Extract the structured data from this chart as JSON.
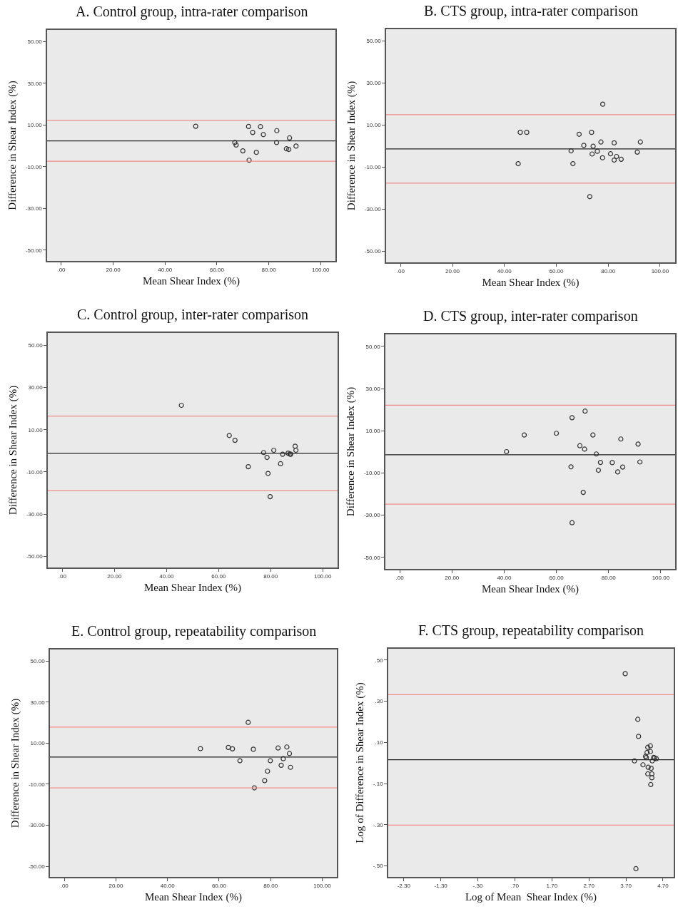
{
  "chart_data": [
    {
      "type": "scatter",
      "title": "A. Control group, intra-rater comparison",
      "xlabel": "Mean Shear Index (%)",
      "ylabel": "Difference in Shear Index (%)",
      "marker": "circle",
      "grid": false,
      "xlim": [
        -5.5,
        105.7
      ],
      "ylim": [
        -55.2,
        55.6
      ],
      "xticks": [
        {
          "value": 0,
          "label": ".00"
        },
        {
          "value": 20,
          "label": "20.00"
        },
        {
          "value": 40,
          "label": "40.00"
        },
        {
          "value": 60,
          "label": "60.00"
        },
        {
          "value": 80,
          "label": "80.00"
        },
        {
          "value": 100,
          "label": "100.00"
        }
      ],
      "yticks": [
        {
          "value": -50,
          "label": "-50.00"
        },
        {
          "value": -30,
          "label": "-30.00"
        },
        {
          "value": -10,
          "label": "-10.00"
        },
        {
          "value": 10,
          "label": "10.00"
        },
        {
          "value": 30,
          "label": "30.00"
        },
        {
          "value": 50,
          "label": "50.00"
        }
      ],
      "ref_lines": [
        {
          "axis": "y",
          "value": 12.3,
          "color": "#f08c8c"
        },
        {
          "axis": "y",
          "value": 2.4,
          "color": "#222222"
        },
        {
          "axis": "y",
          "value": -7.4,
          "color": "#f08c8c"
        }
      ],
      "series": [
        {
          "color": "#333333",
          "x": [
            51.8,
            66.9,
            67.4,
            70.0,
            72.2,
            72.4,
            73.8,
            75.2,
            76.8,
            77.9,
            83.0,
            83.1,
            86.8,
            87.7,
            88.0,
            90.5
          ],
          "values": [
            9.4,
            1.6,
            0.4,
            -2.4,
            9.3,
            -6.9,
            6.4,
            -3.1,
            9.2,
            5.4,
            1.6,
            7.3,
            -1.4,
            -1.7,
            3.8,
            -0.1
          ]
        }
      ]
    },
    {
      "type": "scatter",
      "title": "B. CTS group, intra-rater comparison",
      "xlabel": "Mean Shear Index (%)",
      "ylabel": "Difference in Shear Index (%)",
      "marker": "circle",
      "grid": false,
      "xlim": [
        -5.6,
        105.8
      ],
      "ylim": [
        -55.4,
        55.6
      ],
      "xticks": [
        {
          "value": 0,
          "label": ".00"
        },
        {
          "value": 20,
          "label": "20.00"
        },
        {
          "value": 40,
          "label": "40.00"
        },
        {
          "value": 60,
          "label": "60.00"
        },
        {
          "value": 80,
          "label": "80.00"
        },
        {
          "value": 100,
          "label": "100.00"
        }
      ],
      "yticks": [
        {
          "value": -50,
          "label": "-50.00"
        },
        {
          "value": -30,
          "label": "-30.00"
        },
        {
          "value": -10,
          "label": "-10.00"
        },
        {
          "value": 10,
          "label": "10.00"
        },
        {
          "value": 30,
          "label": "30.00"
        },
        {
          "value": 50,
          "label": "50.00"
        }
      ],
      "ref_lines": [
        {
          "axis": "y",
          "value": 14.9,
          "color": "#f08c8c"
        },
        {
          "axis": "y",
          "value": -1.4,
          "color": "#222222"
        },
        {
          "axis": "y",
          "value": -17.7,
          "color": "#f08c8c"
        }
      ],
      "series": [
        {
          "color": "#333333",
          "x": [
            45.3,
            46.1,
            48.6,
            65.7,
            66.4,
            68.8,
            70.6,
            72.9,
            73.6,
            73.8,
            74.2,
            75.8,
            77.2,
            77.8,
            77.9,
            80.9,
            82.3,
            82.3,
            83.2,
            85.0,
            91.2,
            92.4
          ],
          "values": [
            -8.4,
            6.5,
            6.5,
            -2.3,
            -8.4,
            5.6,
            0.3,
            -24.1,
            6.5,
            -3.8,
            -0.1,
            -2.5,
            1.9,
            -5.6,
            19.9,
            -3.7,
            1.5,
            -6.7,
            -5.0,
            -6.3,
            -2.9,
            1.9
          ]
        }
      ]
    },
    {
      "type": "scatter",
      "title": "C. Control group, inter-rater comparison",
      "xlabel": "Mean Shear Index (%)",
      "ylabel": "Difference in Shear Index (%)",
      "marker": "circle",
      "grid": false,
      "xlim": [
        -5.6,
        105.7
      ],
      "ylim": [
        -55.3,
        55.9
      ],
      "xticks": [
        {
          "value": 0,
          "label": ".00"
        },
        {
          "value": 20,
          "label": "20.00"
        },
        {
          "value": 40,
          "label": "40.00"
        },
        {
          "value": 60,
          "label": "60.00"
        },
        {
          "value": 80,
          "label": "80.00"
        },
        {
          "value": 100,
          "label": "100.00"
        }
      ],
      "yticks": [
        {
          "value": -50,
          "label": "-50.00"
        },
        {
          "value": -30,
          "label": "-30.00"
        },
        {
          "value": -10,
          "label": "-10.00"
        },
        {
          "value": 10,
          "label": "10.00"
        },
        {
          "value": 30,
          "label": "30.00"
        },
        {
          "value": 50,
          "label": "50.00"
        }
      ],
      "ref_lines": [
        {
          "axis": "y",
          "value": 16.5,
          "color": "#f08c8c"
        },
        {
          "axis": "y",
          "value": -1.2,
          "color": "#222222"
        },
        {
          "axis": "y",
          "value": -18.9,
          "color": "#f08c8c"
        }
      ],
      "series": [
        {
          "color": "#333333",
          "x": [
            45.7,
            64.1,
            66.3,
            71.4,
            77.3,
            78.6,
            79.0,
            79.8,
            81.2,
            83.8,
            84.6,
            86.7,
            87.4,
            87.7,
            89.4,
            89.7
          ],
          "values": [
            21.6,
            7.3,
            5.0,
            -7.5,
            -0.8,
            -3.1,
            -10.7,
            -21.7,
            0.3,
            -6.1,
            -1.6,
            -1.1,
            -1.5,
            -1.6,
            2.2,
            0.3
          ]
        }
      ]
    },
    {
      "type": "scatter",
      "title": "D. CTS group, inter-rater comparison",
      "xlabel": "Mean Shear Index (%)",
      "ylabel": "Difference in Shear Index (%)",
      "marker": "circle",
      "grid": false,
      "xlim": [
        -5.5,
        105.5
      ],
      "ylim": [
        -55.5,
        55.7
      ],
      "xticks": [
        {
          "value": 0,
          "label": ".00"
        },
        {
          "value": 20,
          "label": "20.00"
        },
        {
          "value": 40,
          "label": "40.00"
        },
        {
          "value": 60,
          "label": "60.00"
        },
        {
          "value": 80,
          "label": "80.00"
        },
        {
          "value": 100,
          "label": "100.00"
        }
      ],
      "yticks": [
        {
          "value": -50,
          "label": "-50.00"
        },
        {
          "value": -30,
          "label": "-30.00"
        },
        {
          "value": -10,
          "label": "-10.00"
        },
        {
          "value": 10,
          "label": "10.00"
        },
        {
          "value": 30,
          "label": "30.00"
        },
        {
          "value": 50,
          "label": "50.00"
        }
      ],
      "ref_lines": [
        {
          "axis": "y",
          "value": 22.1,
          "color": "#f08c8c"
        },
        {
          "axis": "y",
          "value": -1.4,
          "color": "#222222"
        },
        {
          "axis": "y",
          "value": -24.8,
          "color": "#f08c8c"
        }
      ],
      "series": [
        {
          "color": "#333333",
          "x": [
            40.9,
            47.7,
            60.0,
            65.6,
            66.0,
            66.0,
            69.0,
            70.3,
            70.8,
            71.0,
            74.0,
            75.3,
            76.1,
            76.9,
            81.4,
            83.5,
            84.7,
            85.4,
            91.3,
            92.0
          ],
          "values": [
            0.1,
            8.0,
            8.8,
            -7.1,
            16.2,
            -33.6,
            2.9,
            -19.2,
            1.3,
            19.3,
            8.0,
            -1.0,
            -8.7,
            -5.0,
            -5.1,
            -9.5,
            6.1,
            -7.2,
            3.7,
            -4.8
          ]
        }
      ]
    },
    {
      "type": "scatter",
      "title": "E. Control group, repeatability comparison",
      "xlabel": "Mean Shear Index (%)",
      "ylabel": "Difference in Shear Index (%)",
      "marker": "circle",
      "grid": false,
      "xlim": [
        -5.6,
        105.7
      ],
      "ylim": [
        -55.2,
        55.6
      ],
      "xticks": [
        {
          "value": 0,
          "label": ".00"
        },
        {
          "value": 20,
          "label": "20.00"
        },
        {
          "value": 40,
          "label": "40.00"
        },
        {
          "value": 60,
          "label": "60.00"
        },
        {
          "value": 80,
          "label": "80.00"
        },
        {
          "value": 100,
          "label": "100.00"
        }
      ],
      "yticks": [
        {
          "value": -50,
          "label": "-50.00"
        },
        {
          "value": -30,
          "label": "-30.00"
        },
        {
          "value": -10,
          "label": "-10.00"
        },
        {
          "value": 10,
          "label": "10.00"
        },
        {
          "value": 30,
          "label": "30.00"
        },
        {
          "value": 50,
          "label": "50.00"
        }
      ],
      "ref_lines": [
        {
          "axis": "y",
          "value": 17.8,
          "color": "#f08c8c"
        },
        {
          "axis": "y",
          "value": 3.2,
          "color": "#222222"
        },
        {
          "axis": "y",
          "value": -11.8,
          "color": "#f08c8c"
        }
      ],
      "series": [
        {
          "color": "#333333",
          "x": [
            52.8,
            63.6,
            65.2,
            68.1,
            71.3,
            73.3,
            73.7,
            77.7,
            78.8,
            79.9,
            82.9,
            84.1,
            84.9,
            86.3,
            87.3,
            87.7
          ],
          "values": [
            7.3,
            7.9,
            7.2,
            1.4,
            20.1,
            7.0,
            -11.8,
            -8.3,
            -3.7,
            1.4,
            7.6,
            -0.8,
            2.4,
            8.1,
            4.9,
            -1.8
          ]
        }
      ]
    },
    {
      "type": "scatter",
      "title": "F. CTS group, repeatability comparison",
      "xlabel": "Log of Mean  Shear Index (%)",
      "ylabel": "Log of Difference in Shear Index (%)",
      "marker": "circle",
      "grid": false,
      "xlim": [
        -2.72,
        4.99
      ],
      "ylim": [
        -0.554,
        0.555
      ],
      "xticks": [
        {
          "value": -2.3,
          "label": "-2.30"
        },
        {
          "value": -1.3,
          "label": "-1.30"
        },
        {
          "value": -0.3,
          "label": "-.30"
        },
        {
          "value": 0.7,
          "label": ".70"
        },
        {
          "value": 1.7,
          "label": "1.70"
        },
        {
          "value": 2.7,
          "label": "2.70"
        },
        {
          "value": 3.7,
          "label": "3.70"
        },
        {
          "value": 4.7,
          "label": "4.70"
        }
      ],
      "yticks": [
        {
          "value": -0.5,
          "label": "-.50"
        },
        {
          "value": -0.3,
          "label": "-.30"
        },
        {
          "value": -0.1,
          "label": "-.10"
        },
        {
          "value": 0.1,
          "label": ".10"
        },
        {
          "value": 0.3,
          "label": ".30"
        },
        {
          "value": 0.5,
          "label": ".50"
        }
      ],
      "ref_lines": [
        {
          "axis": "y",
          "value": 0.332,
          "color": "#f08c8c"
        },
        {
          "axis": "y",
          "value": 0.016,
          "color": "#222222"
        },
        {
          "axis": "y",
          "value": -0.302,
          "color": "#f08c8c"
        }
      ],
      "series": [
        {
          "color": "#333333",
          "x": [
            3.68,
            3.93,
            3.97,
            4.02,
            4.04,
            4.16,
            4.23,
            4.25,
            4.27,
            4.29,
            4.3,
            4.29,
            4.36,
            4.36,
            4.37,
            4.38,
            4.4,
            4.4,
            4.41,
            4.45,
            4.47,
            4.52
          ],
          "values": [
            0.434,
            0.01,
            -0.514,
            0.212,
            0.129,
            -0.009,
            0.032,
            0.026,
            0.051,
            0.076,
            -0.021,
            -0.053,
            0.083,
            0.055,
            -0.105,
            -0.026,
            -0.072,
            -0.053,
            0.01,
            0.027,
            0.024,
            0.021
          ]
        }
      ]
    }
  ]
}
